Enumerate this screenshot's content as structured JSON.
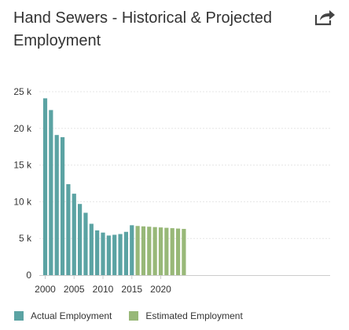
{
  "title": "Hand Sewers - Historical & Projected Employment",
  "share_icon": "share-icon",
  "colors": {
    "actual": "#5ba3a3",
    "estimated": "#98b878",
    "grid": "#e6e6e6",
    "axis_text": "#333333"
  },
  "legend": {
    "actual_label": "Actual Employment",
    "estimated_label": "Estimated Employment"
  },
  "chart_data": {
    "type": "bar",
    "title": "Hand Sewers - Historical & Projected Employment",
    "xlabel": "",
    "ylabel": "",
    "ylim": [
      0,
      25000
    ],
    "yticks": [
      0,
      5000,
      10000,
      15000,
      20000,
      25000
    ],
    "ytick_labels": [
      "0",
      "5 k",
      "10 k",
      "15 k",
      "20 k",
      "25 k"
    ],
    "xticks": [
      2000,
      2005,
      2010,
      2015,
      2020
    ],
    "xtick_labels": [
      "2000",
      "2005",
      "2010",
      "2015",
      "2020"
    ],
    "grid": true,
    "legend_position": "bottom-left",
    "series": [
      {
        "name": "Actual Employment",
        "x": [
          2000,
          2001,
          2002,
          2003,
          2004,
          2005,
          2006,
          2007,
          2008,
          2009,
          2010,
          2011,
          2012,
          2013,
          2014,
          2015
        ],
        "values": [
          24100,
          22500,
          19100,
          18800,
          12400,
          11100,
          9700,
          8500,
          7000,
          6100,
          5800,
          5400,
          5500,
          5600,
          5900,
          6800
        ]
      },
      {
        "name": "Estimated Employment",
        "x": [
          2016,
          2017,
          2018,
          2019,
          2020,
          2021,
          2022,
          2023,
          2024
        ],
        "values": [
          6700,
          6650,
          6600,
          6550,
          6500,
          6450,
          6400,
          6350,
          6300
        ]
      }
    ]
  }
}
